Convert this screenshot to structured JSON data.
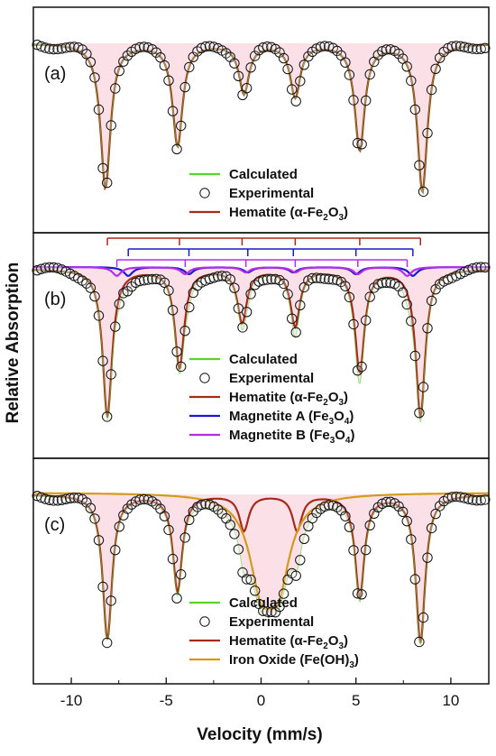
{
  "chart_data": {
    "type": "line",
    "xlabel": "Velocity (mm/s)",
    "ylabel": "Relative Absorption",
    "xlim": [
      -12,
      12
    ],
    "x_ticks": [
      -10,
      -5,
      0,
      5,
      10
    ],
    "x_tick_labels": [
      "-10",
      "-5",
      "0",
      "5",
      "10"
    ],
    "colors": {
      "calculated": "#55d62b",
      "experimental": "#111111",
      "hematite": "#a52a1a",
      "magnetite_a": "#1a1acc",
      "magnetite_b": "#b42ee6",
      "iron_oxide": "#d49a1a",
      "shade": "#f7c7d5"
    },
    "panels": [
      {
        "label": "(a)",
        "legend": [
          {
            "key": "calculated",
            "text": "Calculated",
            "style": "line"
          },
          {
            "key": "experimental",
            "text": "Experimental",
            "style": "marker"
          },
          {
            "key": "hematite",
            "pre": "Hematite (α-Fe",
            "sub1": "2",
            "mid": "O",
            "sub2": "3",
            "post": ")",
            "style": "line"
          }
        ],
        "components": [
          {
            "name": "hematite",
            "lines": [
              -8.2,
              -4.4,
              -0.9,
              1.8,
              5.2,
              8.5
            ],
            "depths": [
              0.82,
              0.58,
              0.28,
              0.3,
              0.6,
              0.84
            ],
            "width": 0.32
          }
        ],
        "markers": false
      },
      {
        "label": "(b)",
        "legend": [
          {
            "key": "calculated",
            "text": "Calculated",
            "style": "line"
          },
          {
            "key": "experimental",
            "text": "Experimental",
            "style": "marker"
          },
          {
            "key": "hematite",
            "pre": "Hematite (α-Fe",
            "sub1": "2",
            "mid": "O",
            "sub2": "3",
            "post": ")",
            "style": "line"
          },
          {
            "key": "magnetite_a",
            "pre": "Magnetite A (Fe",
            "sub1": "3",
            "mid": "O",
            "sub2": "4",
            "post": ")",
            "style": "line"
          },
          {
            "key": "magnetite_b",
            "pre": "Magnetite B (Fe",
            "sub1": "3",
            "mid": "O",
            "sub2": "4",
            "post": ")",
            "style": "line"
          }
        ],
        "components": [
          {
            "name": "hematite",
            "lines": [
              -8.1,
              -4.3,
              -1.0,
              1.8,
              5.2,
              8.4
            ],
            "depths": [
              0.84,
              0.56,
              0.3,
              0.32,
              0.58,
              0.84
            ],
            "width": 0.3
          },
          {
            "name": "magnetite_a",
            "lines": [
              -7.0,
              -3.8,
              -0.7,
              1.7,
              5.0,
              8.0
            ],
            "depths": [
              0.05,
              0.04,
              0.03,
              0.03,
              0.04,
              0.05
            ],
            "width": 0.28
          },
          {
            "name": "magnetite_b",
            "lines": [
              -7.6,
              -4.0,
              -0.8,
              1.8,
              5.1,
              7.7
            ],
            "depths": [
              0.05,
              0.04,
              0.03,
              0.03,
              0.04,
              0.05
            ],
            "width": 0.28
          }
        ],
        "markers": true
      },
      {
        "label": "(c)",
        "legend": [
          {
            "key": "calculated",
            "text": "Calculated",
            "style": "line"
          },
          {
            "key": "experimental",
            "text": "Experimental",
            "style": "marker"
          },
          {
            "key": "hematite",
            "pre": "Hematite (α-Fe",
            "sub1": "2",
            "mid": "O",
            "sub2": "3",
            "post": ")",
            "style": "line"
          },
          {
            "key": "iron_oxide",
            "pre": "Iron Oxide (Fe(OH)",
            "sub1": "3",
            "mid": ")",
            "sub2": "",
            "post": "",
            "style": "line"
          }
        ],
        "components": [
          {
            "name": "hematite",
            "lines": [
              -8.1,
              -4.4,
              -0.9,
              1.9,
              5.2,
              8.4
            ],
            "depths": [
              0.82,
              0.55,
              0.2,
              0.2,
              0.58,
              0.84
            ],
            "width": 0.3
          },
          {
            "name": "iron_oxide",
            "lines": [
              0.0,
              0.9
            ],
            "depths": [
              0.45,
              0.45
            ],
            "width": 0.75
          }
        ],
        "markers": false
      }
    ]
  }
}
